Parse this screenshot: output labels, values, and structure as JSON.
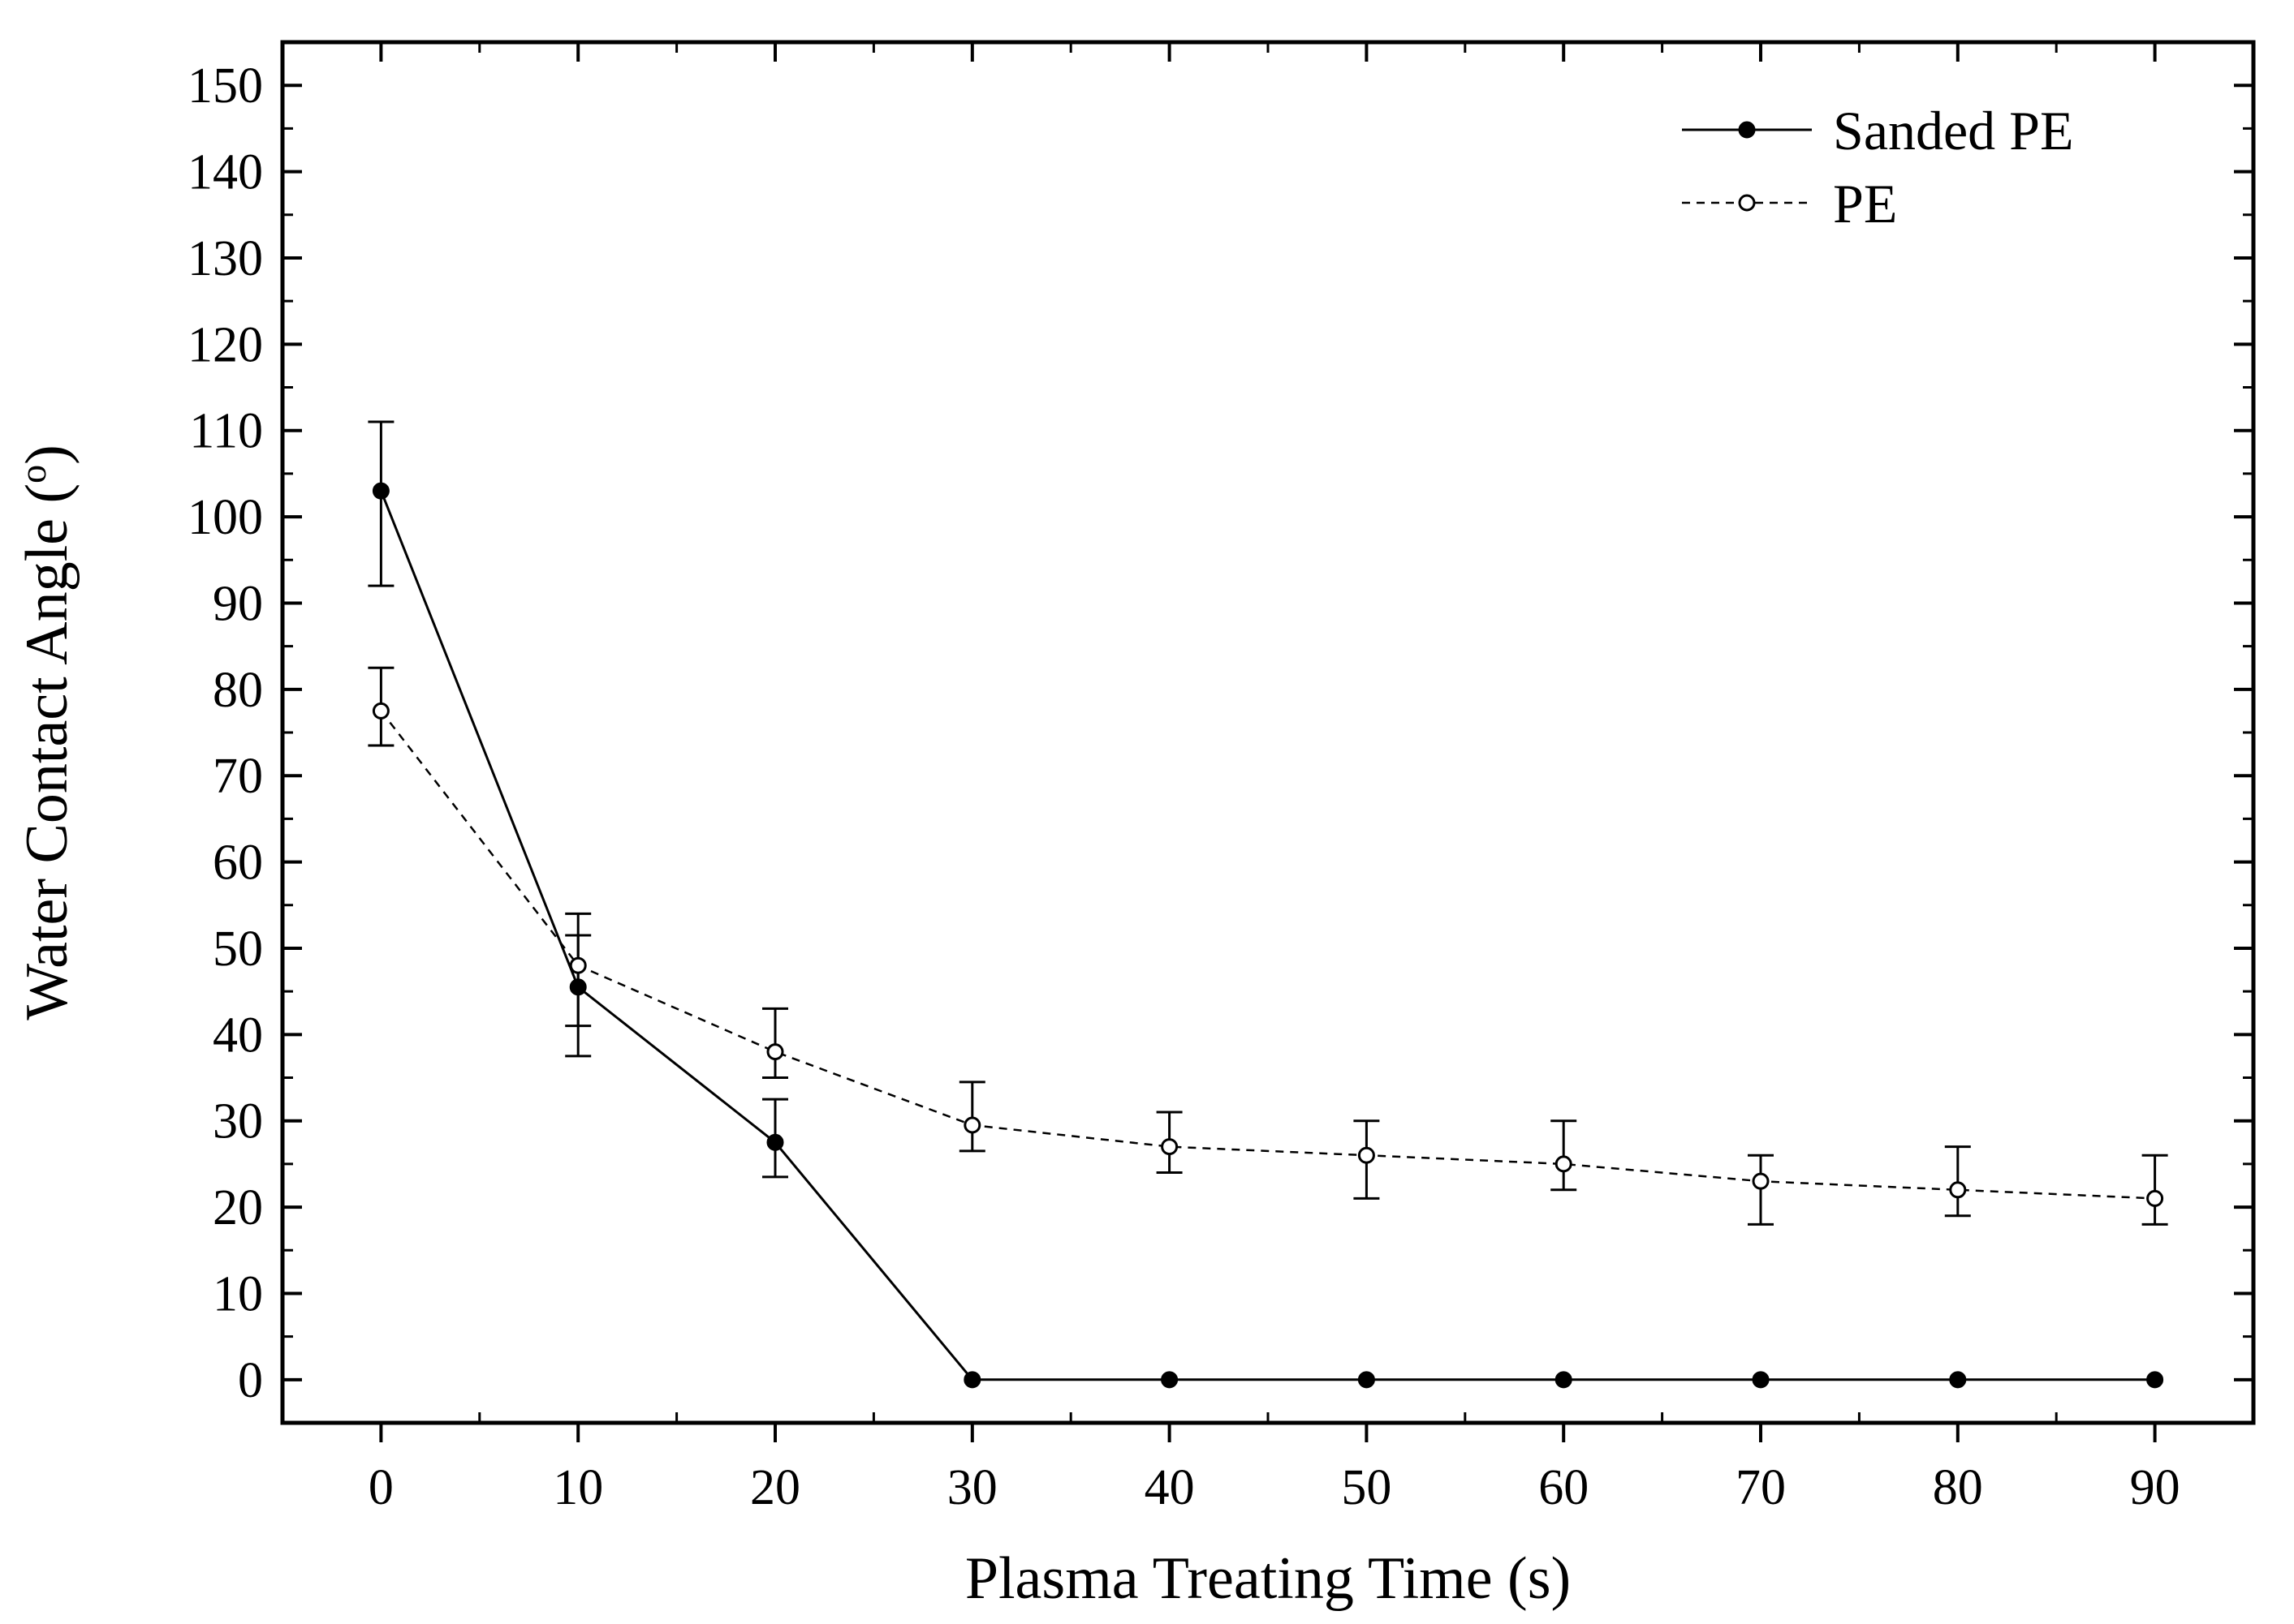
{
  "chart_data": {
    "type": "line",
    "title": "",
    "xlabel": "Plasma Treating Time (s)",
    "ylabel_main": "Water Contact Angle (",
    "ylabel_sup": "o",
    "ylabel_end": ")",
    "xlim": [
      -5,
      95
    ],
    "ylim": [
      -5,
      155
    ],
    "xticks": [
      0,
      10,
      20,
      30,
      40,
      50,
      60,
      70,
      80,
      90
    ],
    "yticks": [
      0,
      10,
      20,
      30,
      40,
      50,
      60,
      70,
      80,
      90,
      100,
      110,
      120,
      130,
      140,
      150
    ],
    "x": [
      0,
      10,
      20,
      30,
      40,
      50,
      60,
      70,
      80,
      90
    ],
    "series": [
      {
        "name": "Sanded PE",
        "marker": "filled-circle",
        "line": "solid",
        "values": [
          103,
          45.5,
          27.5,
          0,
          0,
          0,
          0,
          0,
          0,
          0
        ],
        "err_low": [
          92,
          37.5,
          23.5,
          null,
          null,
          null,
          null,
          null,
          null,
          null
        ],
        "err_high": [
          111,
          51.5,
          32.5,
          null,
          null,
          null,
          null,
          null,
          null,
          null
        ]
      },
      {
        "name": "PE",
        "marker": "open-circle",
        "line": "dashed",
        "values": [
          77.5,
          48,
          38,
          29.5,
          27,
          26,
          25,
          23,
          22,
          21
        ],
        "err_low": [
          73.5,
          41,
          35,
          26.5,
          24,
          21,
          22,
          18,
          19,
          18
        ],
        "err_high": [
          82.5,
          54,
          43,
          34.5,
          31,
          30,
          30,
          26,
          27,
          26
        ]
      }
    ],
    "legend_position": "top-right"
  }
}
